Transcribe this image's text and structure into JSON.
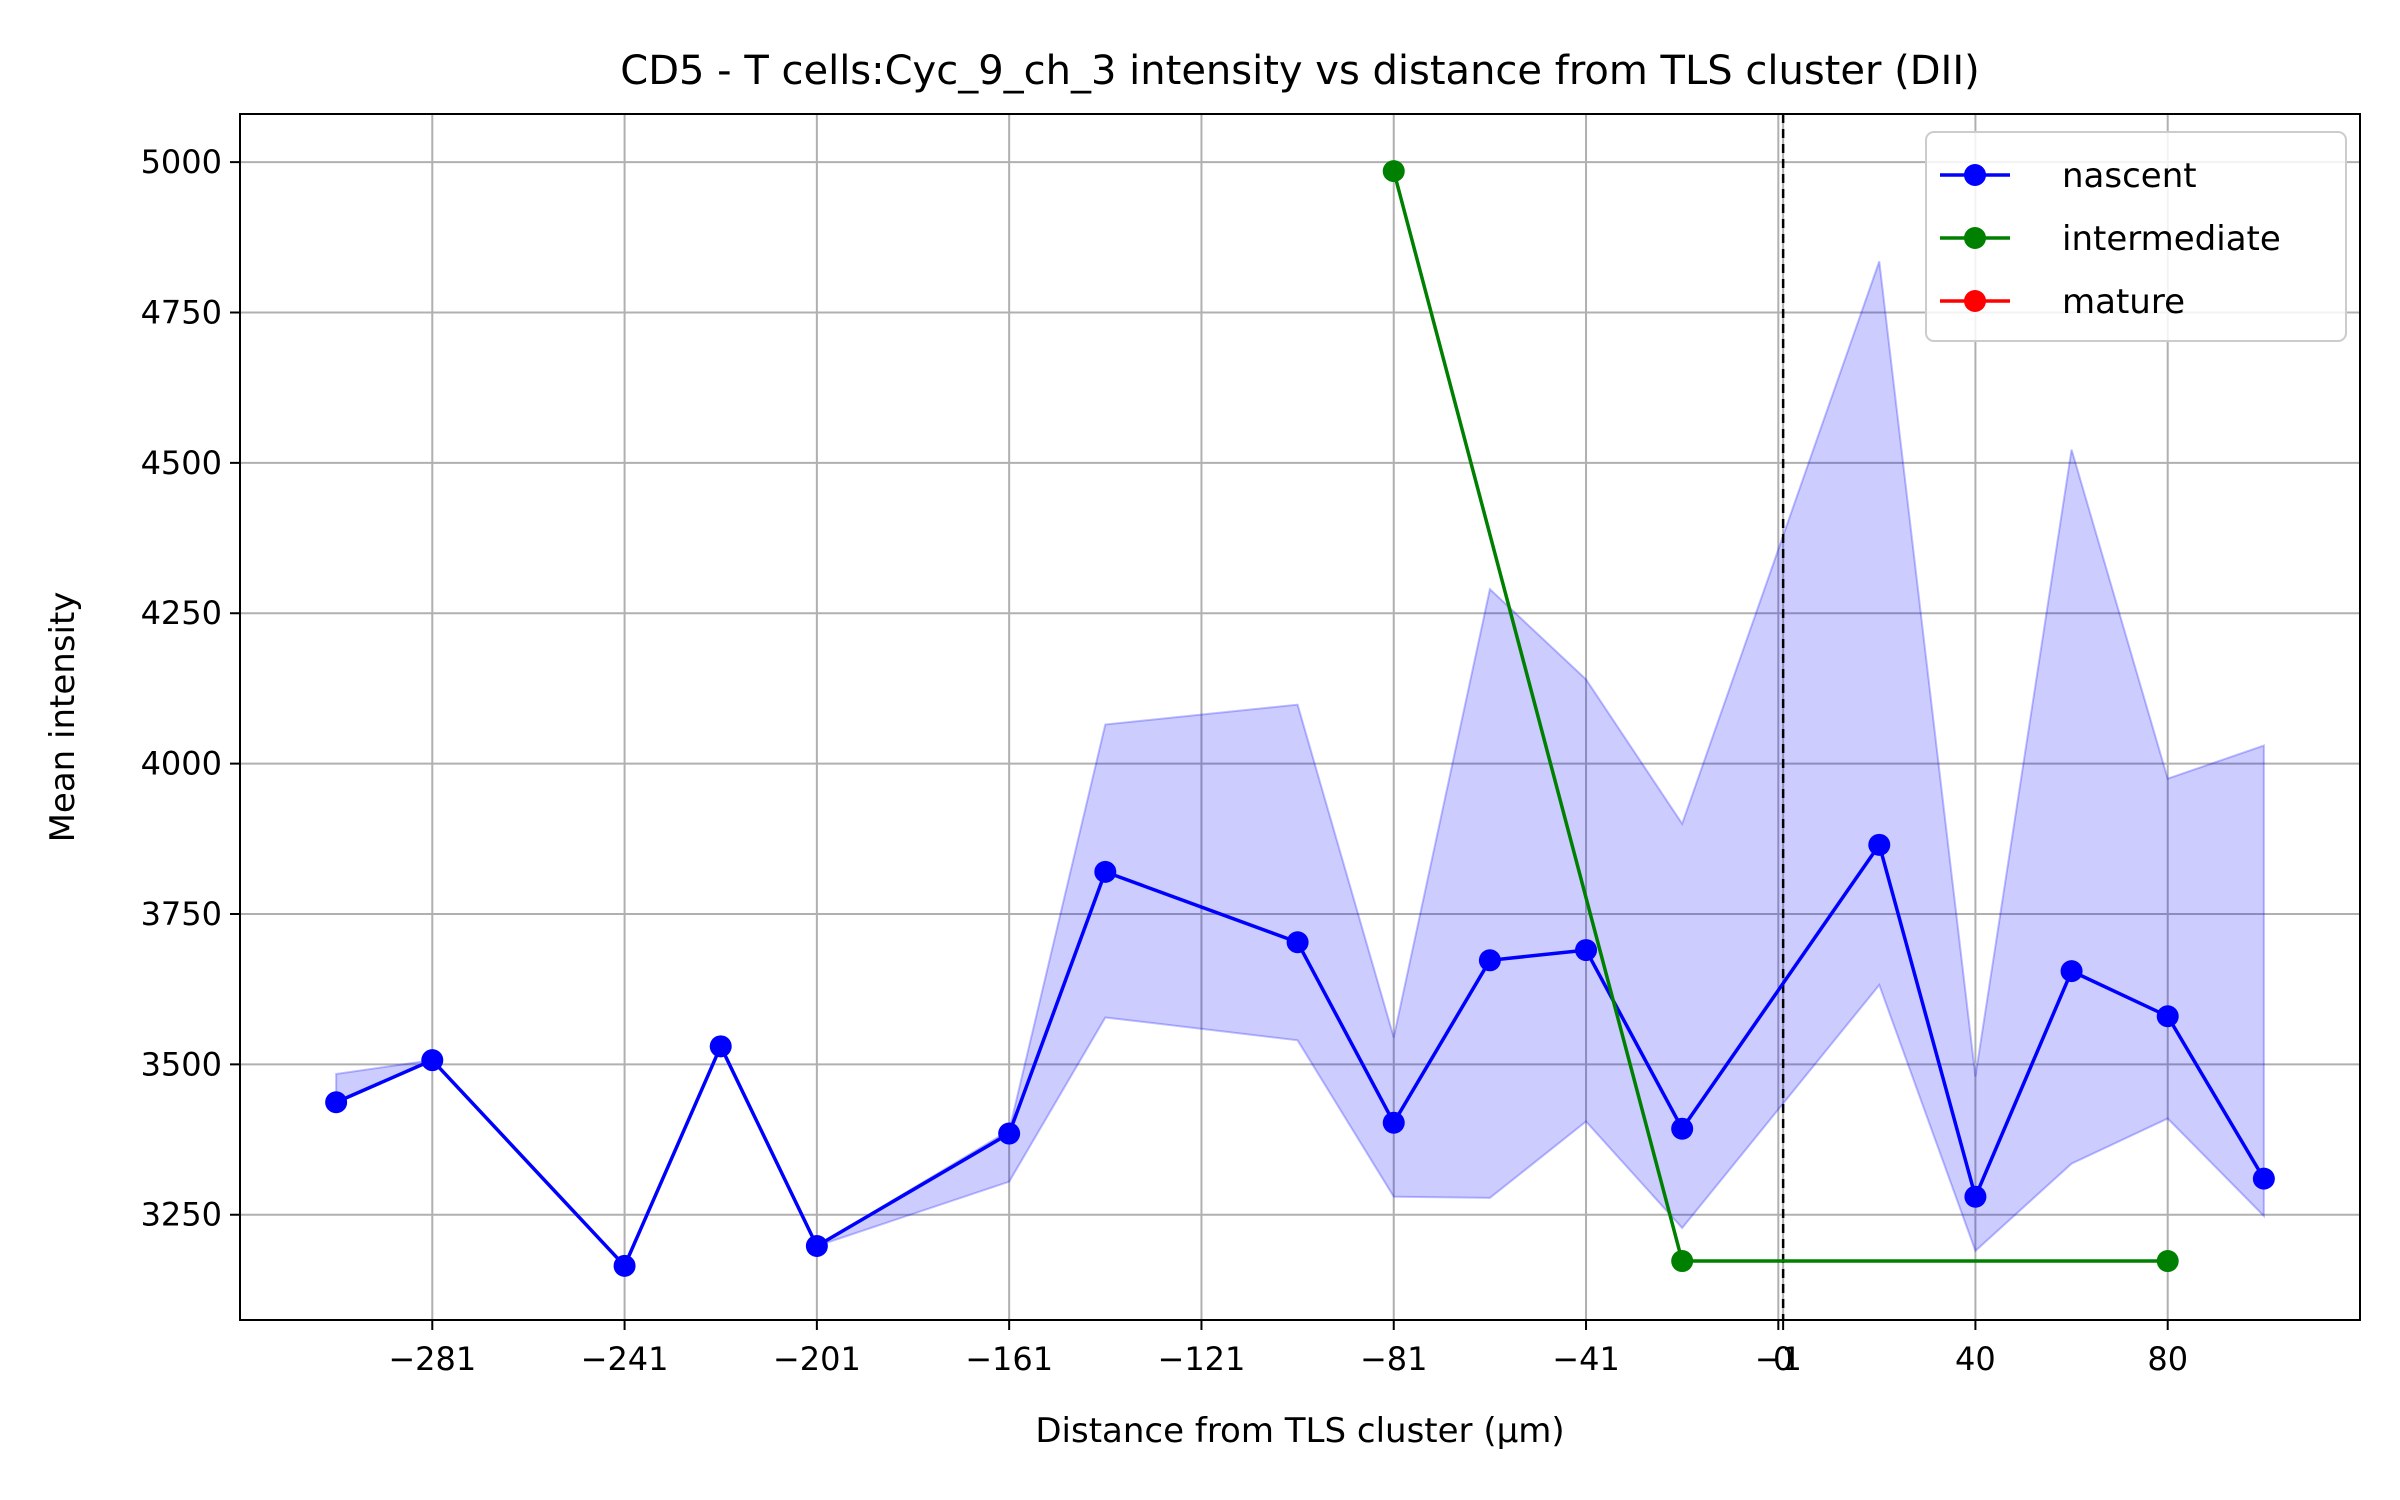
{
  "chart_data": {
    "type": "line",
    "title": "CD5 - T cells:Cyc_9_ch_3 intensity vs distance from TLS cluster (DII)",
    "xlabel": "Distance from TLS cluster (μm)",
    "ylabel": "Mean intensity",
    "xlim": [
      -321,
      120
    ],
    "ylim": [
      3075,
      5080
    ],
    "xticks": [
      -281,
      -241,
      -201,
      -161,
      -121,
      -81,
      -41,
      -1,
      0,
      40,
      80
    ],
    "xtick_labels": [
      "−281",
      "−241",
      "−201",
      "−161",
      "−121",
      "−81",
      "−41",
      "−1",
      "0",
      "40",
      "80"
    ],
    "yticks": [
      3250,
      3500,
      3750,
      4000,
      4250,
      4500,
      4750,
      5000
    ],
    "ytick_labels": [
      "3250",
      "3500",
      "3750",
      "4000",
      "4250",
      "4500",
      "4750",
      "5000"
    ],
    "grid": true,
    "reference_line": {
      "x": 0,
      "style": "dashed",
      "color": "#000000"
    },
    "legend": {
      "position": "top-right"
    },
    "series": [
      {
        "name": "nascent",
        "color": "#0000ff",
        "band_color": "#0000ff",
        "x": [
          -301,
          -281,
          -241,
          -221,
          -201,
          -161,
          -141,
          -101,
          -81,
          -61,
          -41,
          -21,
          20,
          40,
          60,
          80,
          100
        ],
        "y": [
          3437,
          3507,
          3165,
          3530,
          3198,
          3385,
          3820,
          3703,
          3403,
          3673,
          3690,
          3393,
          3865,
          3280,
          3655,
          3580,
          3310
        ],
        "lower": [
          3437,
          3507,
          3165,
          3530,
          3198,
          3305,
          3578,
          3540,
          3280,
          3278,
          3405,
          3228,
          3632,
          3190,
          3335,
          3410,
          3248
        ],
        "upper": [
          3484,
          3507,
          3165,
          3530,
          3198,
          3390,
          4065,
          4098,
          3545,
          4290,
          4140,
          3900,
          4835,
          3480,
          4522,
          3975,
          4030
        ]
      },
      {
        "name": "intermediate",
        "color": "#008000",
        "x": [
          -81,
          -21,
          80
        ],
        "y": [
          4985,
          3173,
          3173
        ]
      },
      {
        "name": "mature",
        "color": "#ff0000",
        "x": [],
        "y": []
      }
    ]
  }
}
